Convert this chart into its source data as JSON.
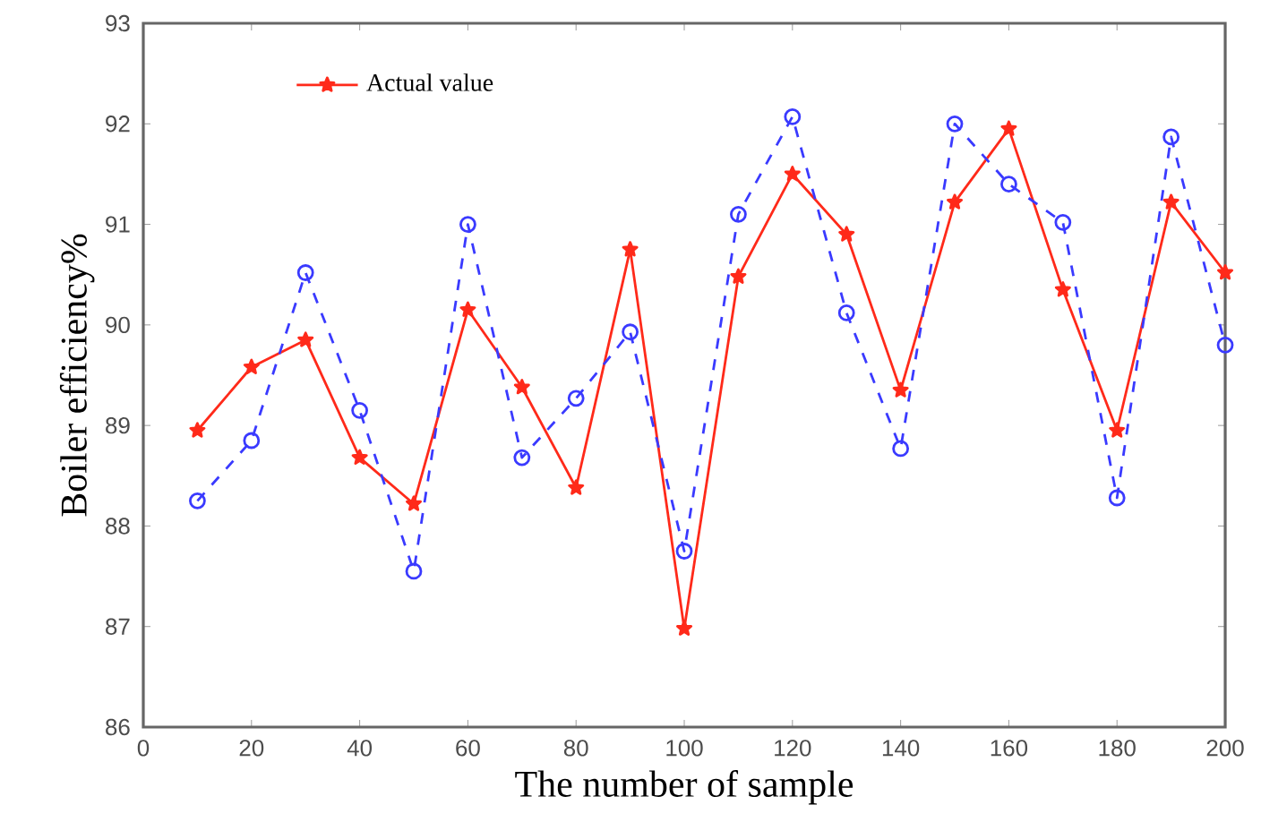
{
  "chart_data": {
    "type": "line",
    "xlabel": "The number of sample",
    "ylabel": "Boiler efficiency%",
    "x": [
      10,
      20,
      30,
      40,
      50,
      60,
      70,
      80,
      90,
      100,
      110,
      120,
      130,
      140,
      150,
      160,
      170,
      180,
      190,
      200
    ],
    "series": [
      {
        "name": "Actual value",
        "color": "#ff2a1a",
        "marker": "star",
        "line_style": "solid",
        "values": [
          88.95,
          89.58,
          89.85,
          88.68,
          88.22,
          90.15,
          89.38,
          88.38,
          90.75,
          86.98,
          90.48,
          91.5,
          90.9,
          89.35,
          91.22,
          91.95,
          90.35,
          88.95,
          91.22,
          90.52
        ]
      },
      {
        "color": "#3a3aff",
        "marker": "circle",
        "line_style": "dashed",
        "values": [
          88.25,
          88.85,
          90.52,
          89.15,
          87.55,
          91.0,
          88.68,
          89.27,
          89.93,
          87.75,
          91.1,
          92.07,
          90.12,
          88.77,
          92.0,
          91.4,
          91.02,
          88.28,
          91.87,
          89.8
        ]
      }
    ],
    "xlim": [
      0,
      200
    ],
    "xticks": [
      0,
      20,
      40,
      60,
      80,
      100,
      120,
      140,
      160,
      180,
      200
    ],
    "ylim": [
      86,
      93
    ],
    "yticks": [
      86,
      87,
      88,
      89,
      90,
      91,
      92,
      93
    ],
    "legend": "top left"
  }
}
